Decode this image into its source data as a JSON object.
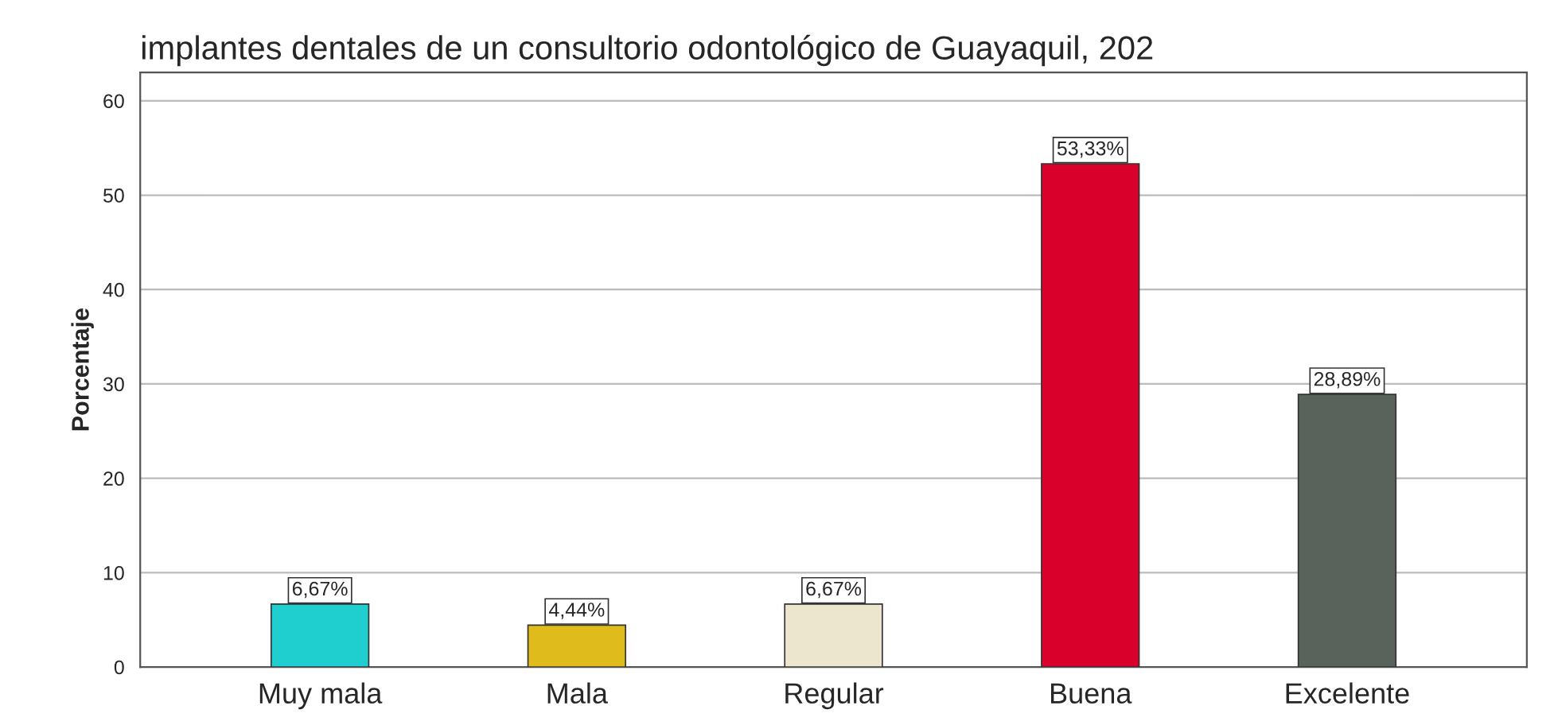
{
  "chart_data": {
    "type": "bar",
    "title": "implantes dentales de un consultorio odontológico de Guayaquil, 202",
    "ylabel": "Porcentaje",
    "categories": [
      "Muy mala",
      "Mala",
      "Regular",
      "Buena",
      "Excelente"
    ],
    "values": [
      6.67,
      4.44,
      6.67,
      53.33,
      28.89
    ],
    "value_labels": [
      "6,67%",
      "4,44%",
      "6,67%",
      "53,33%",
      "28,89%"
    ],
    "colors": [
      "#1fcfcf",
      "#e0bb1c",
      "#ece6cf",
      "#d9002b",
      "#5a625c"
    ],
    "ylim": [
      0,
      63
    ],
    "yticks": [
      0,
      10,
      20,
      30,
      40,
      50,
      60
    ],
    "grid": "y"
  }
}
